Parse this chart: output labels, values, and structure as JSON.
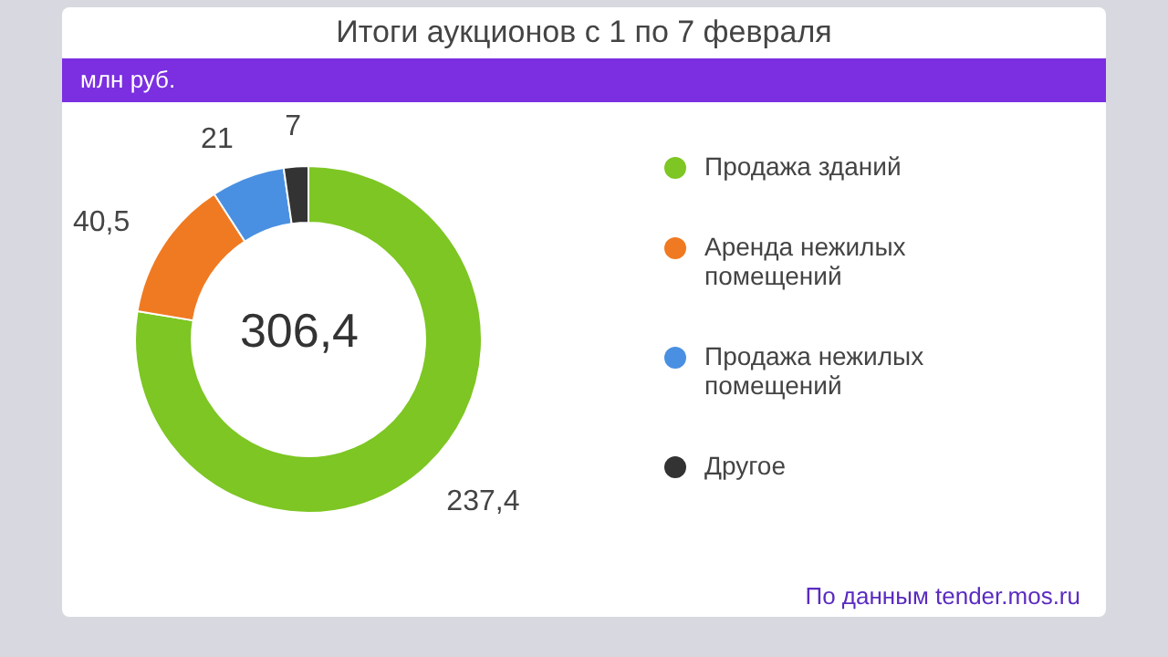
{
  "chart_data": {
    "type": "donut",
    "title": "Итоги аукционов с 1 по 7 февраля",
    "subtitle": "млн руб.",
    "categories": [
      "Продажа зданий",
      "Аренда нежилых помещений",
      "Продажа нежилых помещений",
      "Другое"
    ],
    "values": [
      237.4,
      40.5,
      21,
      7
    ],
    "value_labels": [
      "237,4",
      "40,5",
      "21",
      "7"
    ],
    "colors": [
      "#7dc623",
      "#f07a22",
      "#4a90e2",
      "#333333"
    ],
    "legend": "right",
    "annotations": [
      "306,4",
      "По данным tender.mos.ru"
    ]
  }
}
